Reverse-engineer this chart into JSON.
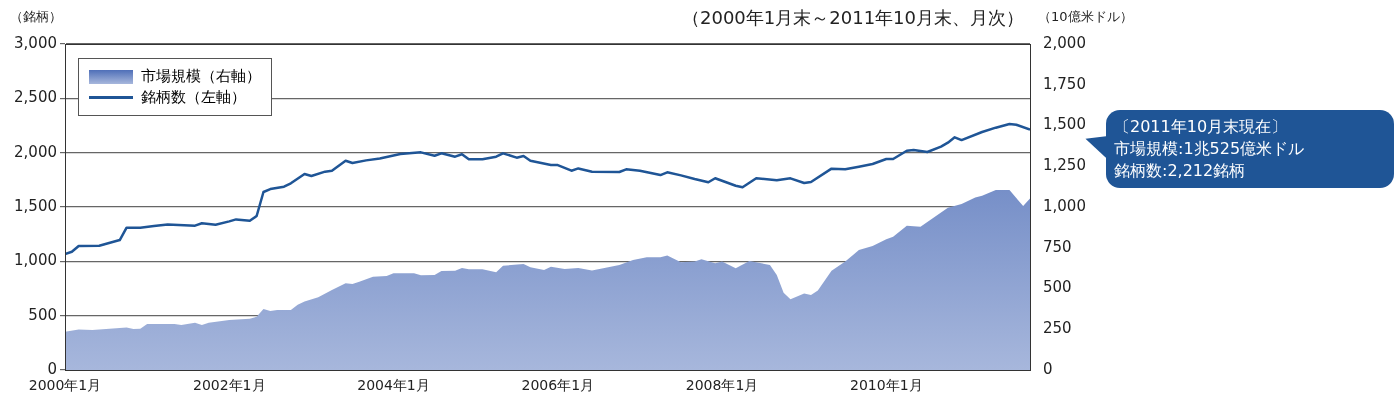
{
  "chart_data": {
    "type": "line",
    "subtitle": "（2000年1月末～2011年10月末、月次）",
    "ylabel": "（銘柄）",
    "y2label": "（10億米ドル）",
    "xlim": [
      "2000-01",
      "2011-10"
    ],
    "xticks": [
      {
        "value": "2000-01",
        "label": "2000年1月"
      },
      {
        "value": "2002-01",
        "label": "2002年1月"
      },
      {
        "value": "2004-01",
        "label": "2004年1月"
      },
      {
        "value": "2006-01",
        "label": "2006年1月"
      },
      {
        "value": "2008-01",
        "label": "2008年1月"
      },
      {
        "value": "2010-01",
        "label": "2010年1月"
      }
    ],
    "ylim": [
      0,
      3000
    ],
    "yticks": [
      {
        "value": 0,
        "label": "0"
      },
      {
        "value": 500,
        "label": "500"
      },
      {
        "value": 1000,
        "label": "1,000"
      },
      {
        "value": 1500,
        "label": "1,500"
      },
      {
        "value": 2000,
        "label": "2,000"
      },
      {
        "value": 2500,
        "label": "2,500"
      },
      {
        "value": 3000,
        "label": "3,000"
      }
    ],
    "y2lim": [
      0,
      2000
    ],
    "y2ticks": [
      {
        "value": 0,
        "label": "0"
      },
      {
        "value": 250,
        "label": "250"
      },
      {
        "value": 500,
        "label": "500"
      },
      {
        "value": 750,
        "label": "750"
      },
      {
        "value": 1000,
        "label": "1,000"
      },
      {
        "value": 1250,
        "label": "1,250"
      },
      {
        "value": 1500,
        "label": "1,500"
      },
      {
        "value": 1750,
        "label": "1,750"
      },
      {
        "value": 2000,
        "label": "2,000"
      }
    ],
    "grid": "y",
    "legend": "top left",
    "annotations": [
      "〔2011年10月末現在〕",
      "市場規模:1兆525億米ドル",
      "銘柄数:2,212銘柄"
    ],
    "series": [
      {
        "name": "市場規模（右軸）",
        "type": "area",
        "axis": "y2",
        "color": "#4f6fb8",
        "x": [
          "2000-01",
          "2000-03",
          "2000-05",
          "2000-10",
          "2000-11",
          "2000-12",
          "2001-01",
          "2001-05",
          "2001-06",
          "2001-08",
          "2001-09",
          "2001-10",
          "2002-01",
          "2002-04",
          "2002-05",
          "2002-06",
          "2002-07",
          "2002-08",
          "2002-10",
          "2002-11",
          "2002-12",
          "2003-02",
          "2003-04",
          "2003-06",
          "2003-07",
          "2003-08",
          "2003-10",
          "2003-12",
          "2004-01",
          "2004-04",
          "2004-05",
          "2004-07",
          "2004-08",
          "2004-10",
          "2004-11",
          "2004-12",
          "2005-02",
          "2005-04",
          "2005-05",
          "2005-08",
          "2005-09",
          "2005-11",
          "2005-12",
          "2006-02",
          "2006-04",
          "2006-06",
          "2006-10",
          "2006-12",
          "2007-02",
          "2007-04",
          "2007-05",
          "2007-07",
          "2007-09",
          "2007-10",
          "2007-12",
          "2008-01",
          "2008-03",
          "2008-05",
          "2008-08",
          "2008-09",
          "2008-10",
          "2008-11",
          "2009-01",
          "2009-02",
          "2009-03",
          "2009-05",
          "2009-07",
          "2009-09",
          "2009-11",
          "2010-01",
          "2010-02",
          "2010-04",
          "2010-06",
          "2010-08",
          "2010-10",
          "2010-12",
          "2011-02",
          "2011-03",
          "2011-05",
          "2011-07",
          "2011-09",
          "2011-10"
        ],
        "values": [
          235,
          249,
          245,
          260,
          251,
          253,
          282,
          282,
          276,
          290,
          276,
          290,
          307,
          315,
          327,
          374,
          362,
          368,
          368,
          401,
          421,
          446,
          491,
          532,
          528,
          542,
          572,
          577,
          593,
          593,
          581,
          583,
          607,
          609,
          626,
          618,
          618,
          599,
          640,
          650,
          630,
          614,
          634,
          620,
          626,
          611,
          644,
          675,
          691,
          691,
          703,
          661,
          665,
          679,
          655,
          665,
          624,
          669,
          644,
          583,
          474,
          434,
          470,
          460,
          487,
          609,
          665,
          736,
          761,
          802,
          818,
          885,
          879,
          937,
          996,
          1018,
          1059,
          1069,
          1104,
          1104,
          1006,
          1052.5
        ]
      },
      {
        "name": "銘柄数（左軸）",
        "type": "line",
        "axis": "y",
        "color": "#1f5596",
        "x": [
          "2000-01",
          "2000-02",
          "2000-03",
          "2000-06",
          "2000-09",
          "2000-10",
          "2000-12",
          "2001-02",
          "2001-04",
          "2001-08",
          "2001-09",
          "2001-11",
          "2002-01",
          "2002-02",
          "2002-04",
          "2002-05",
          "2002-06",
          "2002-07",
          "2002-09",
          "2002-10",
          "2002-12",
          "2003-01",
          "2003-03",
          "2003-04",
          "2003-06",
          "2003-07",
          "2003-09",
          "2003-11",
          "2004-02",
          "2004-05",
          "2004-07",
          "2004-08",
          "2004-10",
          "2004-11",
          "2004-12",
          "2005-02",
          "2005-04",
          "2005-05",
          "2005-07",
          "2005-08",
          "2005-09",
          "2005-12",
          "2006-01",
          "2006-03",
          "2006-04",
          "2006-06",
          "2006-10",
          "2006-11",
          "2007-01",
          "2007-04",
          "2007-05",
          "2007-07",
          "2007-09",
          "2007-11",
          "2007-12",
          "2008-03",
          "2008-04",
          "2008-06",
          "2008-09",
          "2008-11",
          "2009-01",
          "2009-02",
          "2009-05",
          "2009-07",
          "2009-09",
          "2009-11",
          "2010-01",
          "2010-02",
          "2010-04",
          "2010-05",
          "2010-07",
          "2010-09",
          "2010-10",
          "2010-11",
          "2010-12",
          "2011-03",
          "2011-05",
          "2011-07",
          "2011-08",
          "2011-10"
        ],
        "values": [
          1067,
          1088,
          1141,
          1144,
          1196,
          1310,
          1310,
          1325,
          1340,
          1328,
          1350,
          1337,
          1368,
          1386,
          1373,
          1417,
          1638,
          1665,
          1687,
          1718,
          1804,
          1785,
          1825,
          1834,
          1926,
          1905,
          1929,
          1947,
          1988,
          2003,
          1972,
          1994,
          1963,
          1985,
          1939,
          1939,
          1963,
          1994,
          1954,
          1969,
          1926,
          1886,
          1886,
          1834,
          1855,
          1825,
          1822,
          1847,
          1834,
          1794,
          1819,
          1791,
          1758,
          1728,
          1765,
          1696,
          1681,
          1764,
          1746,
          1764,
          1721,
          1730,
          1853,
          1847,
          1871,
          1896,
          1942,
          1942,
          2018,
          2024,
          2006,
          2055,
          2092,
          2141,
          2116,
          2190,
          2230,
          2264,
          2257,
          2212
        ]
      }
    ]
  }
}
